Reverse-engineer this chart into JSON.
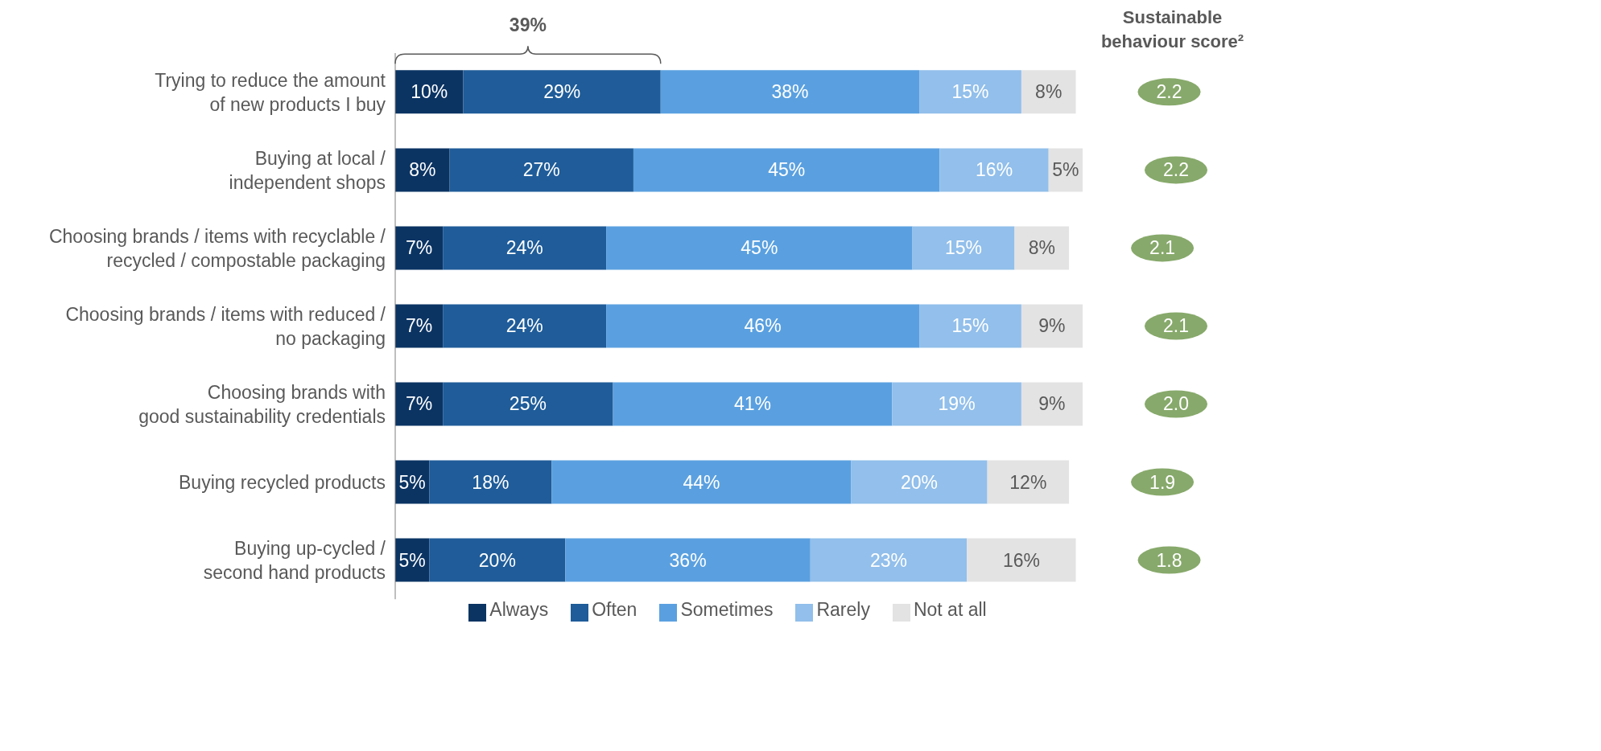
{
  "chart_data": {
    "type": "bar",
    "orientation": "horizontal",
    "stacked": true,
    "legend": "bottom",
    "categories": [
      "Trying to reduce the amount\nof new products I buy",
      "Buying at local /\nindependent shops",
      "Choosing brands / items with recyclable /\nrecycled / compostable packaging",
      "Choosing brands / items with reduced /\nno packaging",
      "Choosing brands with\ngood sustainability credentials",
      "Buying recycled products",
      "Buying up-cycled /\nsecond hand products"
    ],
    "series": [
      {
        "name": "Always",
        "color": "#0b3463",
        "values": [
          10,
          8,
          7,
          7,
          7,
          5,
          5
        ],
        "value_labels": [
          "10%",
          "8%",
          "7%",
          "7%",
          "7%",
          "5%",
          "5%"
        ]
      },
      {
        "name": "Often",
        "color": "#1f5c99",
        "values": [
          29,
          27,
          24,
          24,
          25,
          18,
          20
        ],
        "value_labels": [
          "29%",
          "27%",
          "24%",
          "24%",
          "25%",
          "18%",
          "20%"
        ]
      },
      {
        "name": "Sometimes",
        "color": "#5aa0e0",
        "values": [
          38,
          45,
          45,
          46,
          41,
          44,
          36
        ],
        "value_labels": [
          "38%",
          "45%",
          "45%",
          "46%",
          "41%",
          "44%",
          "36%"
        ]
      },
      {
        "name": "Rarely",
        "color": "#92bfeb",
        "values": [
          15,
          16,
          15,
          15,
          19,
          20,
          23
        ],
        "value_labels": [
          "15%",
          "16%",
          "15%",
          "15%",
          "19%",
          "20%",
          "23%"
        ]
      },
      {
        "name": "Not at all",
        "color": "#e3e3e3",
        "values": [
          8,
          5,
          8,
          9,
          9,
          12,
          16
        ],
        "value_labels": [
          "8%",
          "5%",
          "8%",
          "9%",
          "9%",
          "12%",
          "16%"
        ]
      }
    ],
    "annotations": [
      "39%",
      "Sustainable\nbehaviour score²",
      "2.2",
      "2.2",
      "2.1",
      "2.1",
      "2.0",
      "1.9",
      "1.8"
    ]
  }
}
